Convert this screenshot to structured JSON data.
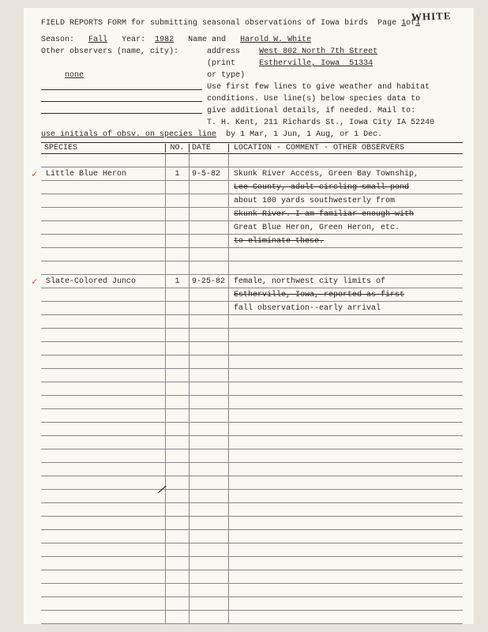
{
  "handwritten_corner": "WHITE",
  "title_a": "FIELD REPORTS FORM for submitting seasonal observations of Iowa birds",
  "page_label_a": "Page ",
  "page_num": "1",
  "page_label_b": "of",
  "page_total": "1",
  "season_label": "Season:",
  "season_value": "Fall",
  "year_label": "Year:",
  "year_value": "1982",
  "name_label": "Name and",
  "name_value": "Harold W. White",
  "other_obs_label": "Other observers (name, city):",
  "addr_label1": "address",
  "addr_line1": "West 802 North 7th Street",
  "addr_label2": "(print",
  "addr_line2": "Estherville, Iowa  51334",
  "addr_label3": "or type)",
  "other_obs_value": "none",
  "instr1": "Use first few lines to give weather and habitat",
  "instr2": "conditions. Use line(s) below species data to",
  "instr3": "give additional details, if needed. Mail to:",
  "instr4": "T. H. Kent, 211 Richards St., Iowa City IA 52240",
  "initials_note": "use initials of obsv. on species line",
  "instr5": "by 1 Mar, 1 Jun, 1 Aug, or 1 Dec.",
  "th_species": "SPECIES",
  "th_no": "NO.",
  "th_date": "DATE",
  "th_loc": "LOCATION - COMMENT - OTHER OBSERVERS",
  "r": [
    {
      "sp": "",
      "no": "",
      "dt": "",
      "lc": "",
      "ck": false
    },
    {
      "sp": "Little Blue Heron",
      "no": "1",
      "dt": "9-5-82",
      "lc": "Skunk River Access, Green Bay Township,",
      "ck": true
    },
    {
      "sp": "",
      "no": "",
      "dt": "",
      "lc": "Lee County, adult circling small pond",
      "strike": true
    },
    {
      "sp": "",
      "no": "",
      "dt": "",
      "lc": "about 100 yards southwesterly from"
    },
    {
      "sp": "",
      "no": "",
      "dt": "",
      "lc": "Skunk River.  I am familiar enough with",
      "strike": true
    },
    {
      "sp": "",
      "no": "",
      "dt": "",
      "lc": "Great Blue Heron, Green Heron, etc."
    },
    {
      "sp": "",
      "no": "",
      "dt": "",
      "lc": "to eliminate these.",
      "strike": true
    },
    {
      "sp": "",
      "no": "",
      "dt": "",
      "lc": ""
    },
    {
      "sp": "",
      "no": "",
      "dt": "",
      "lc": ""
    },
    {
      "sp": "Slate-Colored Junco",
      "no": "1",
      "dt": "9-25-82",
      "lc": "female, northwest city limits of",
      "ck": true
    },
    {
      "sp": "",
      "no": "",
      "dt": "",
      "lc": "Estherville, Iowa, reported as first",
      "strike": true
    },
    {
      "sp": "",
      "no": "",
      "dt": "",
      "lc": "fall observation--early arrival"
    },
    {
      "sp": "",
      "no": "",
      "dt": "",
      "lc": ""
    },
    {
      "sp": "",
      "no": "",
      "dt": "",
      "lc": ""
    },
    {
      "sp": "",
      "no": "",
      "dt": "",
      "lc": ""
    },
    {
      "sp": "",
      "no": "",
      "dt": "",
      "lc": ""
    },
    {
      "sp": "",
      "no": "",
      "dt": "",
      "lc": ""
    },
    {
      "sp": "",
      "no": "",
      "dt": "",
      "lc": ""
    },
    {
      "sp": "",
      "no": "",
      "dt": "",
      "lc": ""
    },
    {
      "sp": "",
      "no": "",
      "dt": "",
      "lc": ""
    },
    {
      "sp": "",
      "no": "",
      "dt": "",
      "lc": ""
    },
    {
      "sp": "",
      "no": "",
      "dt": "",
      "lc": ""
    },
    {
      "sp": "",
      "no": "",
      "dt": "",
      "lc": ""
    },
    {
      "sp": "",
      "no": "",
      "dt": "",
      "lc": ""
    },
    {
      "sp": "",
      "no": "",
      "dt": "",
      "lc": ""
    },
    {
      "sp": "",
      "no": "",
      "dt": "",
      "lc": ""
    },
    {
      "sp": "",
      "no": "",
      "dt": "",
      "lc": ""
    },
    {
      "sp": "",
      "no": "",
      "dt": "",
      "lc": ""
    },
    {
      "sp": "",
      "no": "",
      "dt": "",
      "lc": ""
    },
    {
      "sp": "",
      "no": "",
      "dt": "",
      "lc": ""
    },
    {
      "sp": "",
      "no": "",
      "dt": "",
      "lc": ""
    },
    {
      "sp": "",
      "no": "",
      "dt": "",
      "lc": ""
    },
    {
      "sp": "",
      "no": "",
      "dt": "",
      "lc": ""
    },
    {
      "sp": "",
      "no": "",
      "dt": "",
      "lc": ""
    },
    {
      "sp": "",
      "no": "",
      "dt": "",
      "lc": ""
    }
  ],
  "slash_mark": "/"
}
